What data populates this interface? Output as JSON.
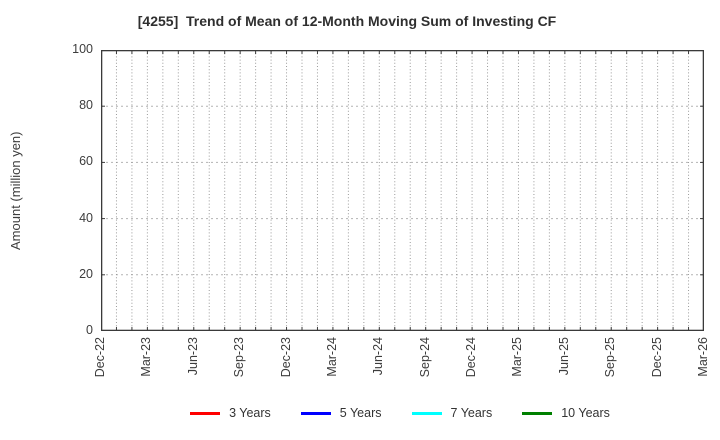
{
  "chart_data": {
    "type": "line",
    "title": "[4255]  Trend of Mean of 12-Month Moving Sum of Investing CF",
    "ylabel": "Amount (million yen)",
    "ylim": [
      0,
      100
    ],
    "yticks": [
      0,
      20,
      40,
      60,
      80,
      100
    ],
    "x_tick_labels": [
      "Dec-22",
      "Mar-23",
      "Jun-23",
      "Sep-23",
      "Dec-23",
      "Mar-24",
      "Jun-24",
      "Sep-24",
      "Dec-24",
      "Mar-25",
      "Jun-25",
      "Sep-25",
      "Dec-25",
      "Mar-26"
    ],
    "months_per_tick": 3,
    "total_months": 39,
    "grid": true,
    "legend_position": "bottom",
    "frame_color": "#3a3a3a",
    "series": [
      {
        "name": "3 Years",
        "color": "#ff0000",
        "values": []
      },
      {
        "name": "5 Years",
        "color": "#0000ff",
        "values": []
      },
      {
        "name": "7 Years",
        "color": "#00ffff",
        "values": []
      },
      {
        "name": "10 Years",
        "color": "#008000",
        "values": []
      }
    ]
  }
}
